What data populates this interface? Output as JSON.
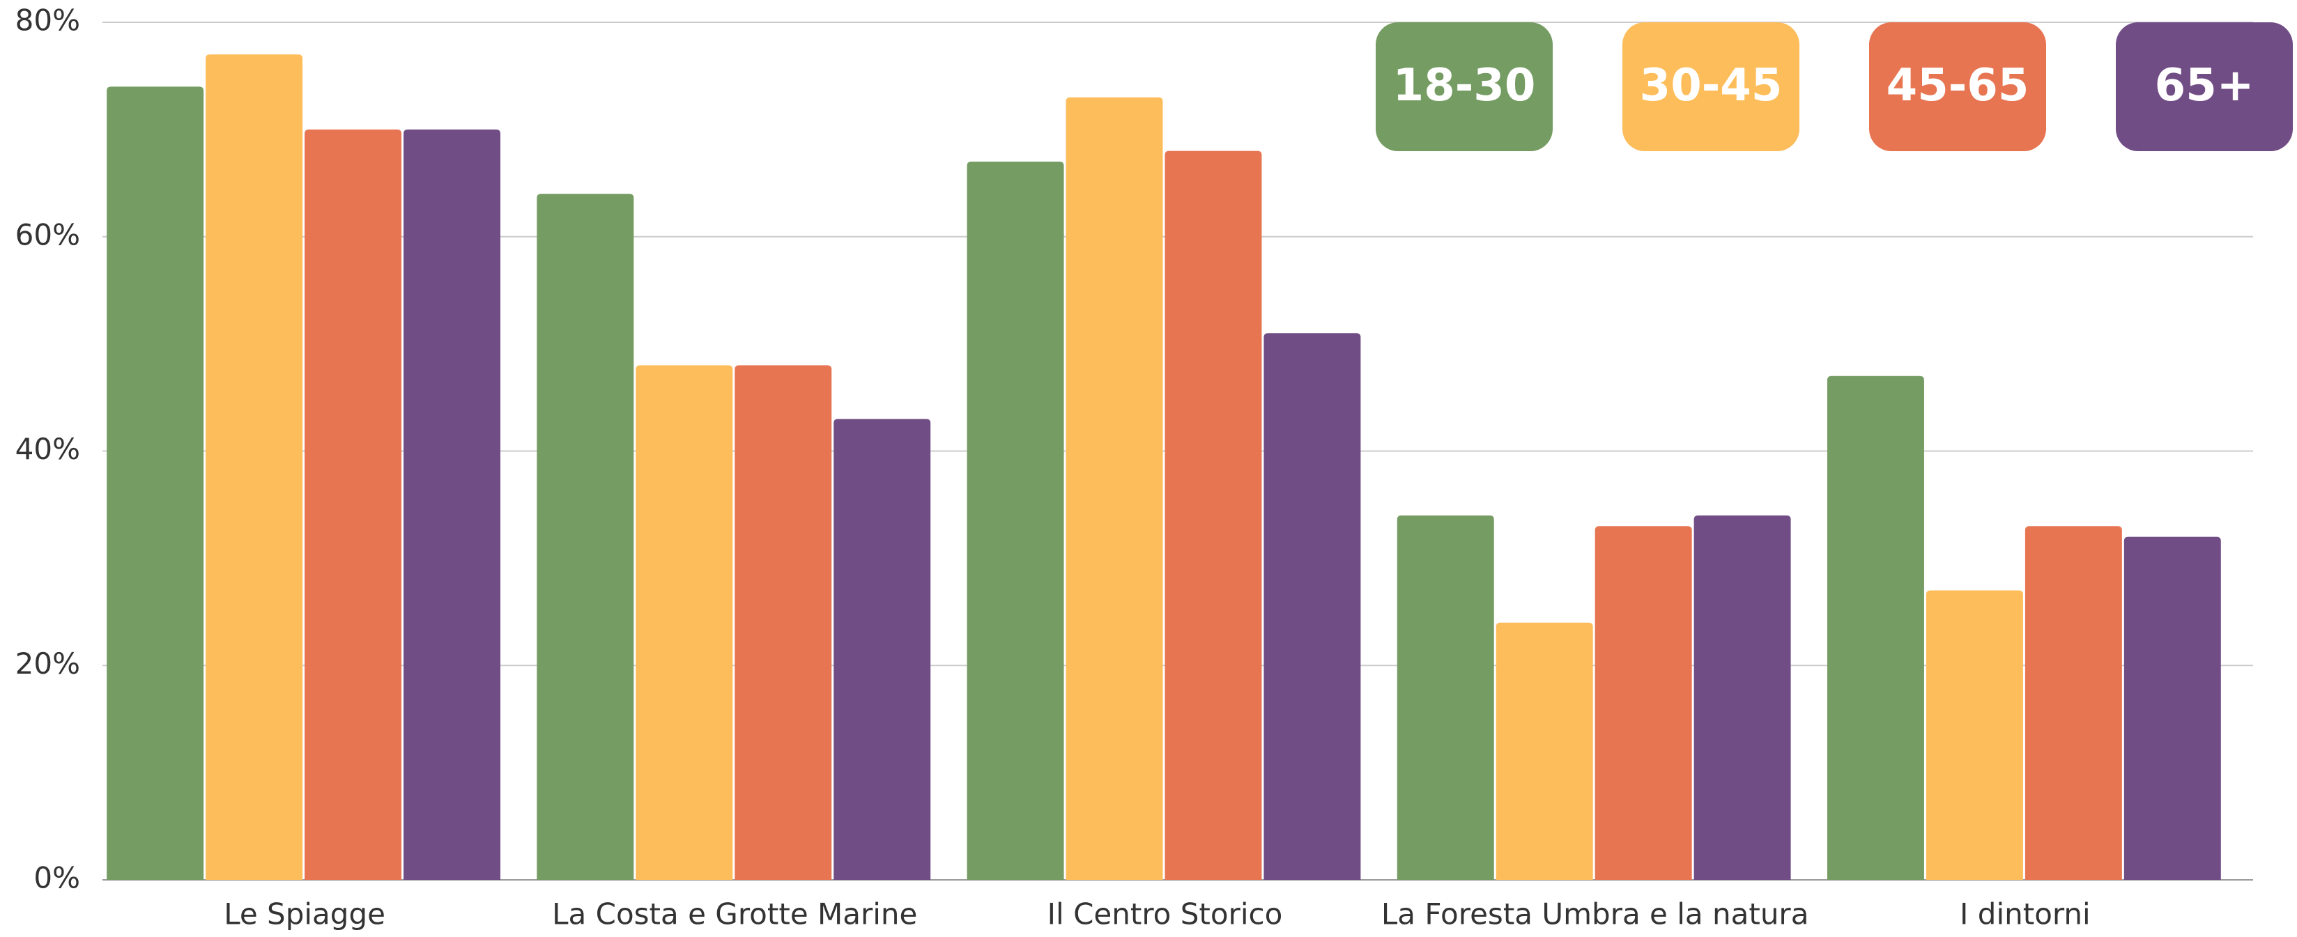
{
  "chart_data": {
    "type": "bar",
    "categories": [
      "Le Spiagge",
      "La Costa e Grotte Marine",
      "Il Centro Storico",
      "La Foresta Umbra e la natura",
      "I dintorni"
    ],
    "series": [
      {
        "name": "18-30",
        "color": "#759c63",
        "values": [
          74,
          64,
          67,
          34,
          47
        ]
      },
      {
        "name": "30-45",
        "color": "#fdbd5a",
        "values": [
          77,
          48,
          73,
          24,
          27
        ]
      },
      {
        "name": "45-65",
        "color": "#e87552",
        "values": [
          70,
          48,
          68,
          33,
          33
        ]
      },
      {
        "name": "65+",
        "color": "#714d86",
        "values": [
          70,
          43,
          51,
          34,
          32
        ]
      }
    ],
    "ylim": [
      0,
      80
    ],
    "yticks": [
      {
        "value": 0,
        "label": "0%"
      },
      {
        "value": 20,
        "label": "20%"
      },
      {
        "value": 40,
        "label": "40%"
      },
      {
        "value": 60,
        "label": "60%"
      },
      {
        "value": 80,
        "label": "80%"
      }
    ],
    "grid": true,
    "legend": "top-right"
  }
}
